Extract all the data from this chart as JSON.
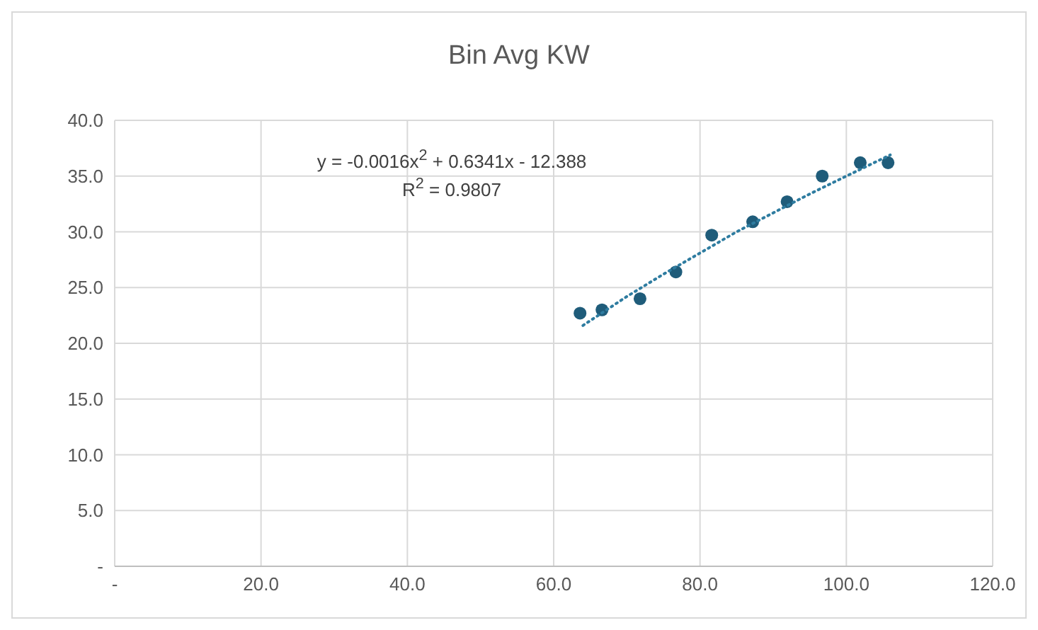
{
  "chart_data": {
    "type": "scatter",
    "title": "Bin Avg KW",
    "series": [
      {
        "color": "#1f5c7a",
        "marker": "circle",
        "x": [
          63.6,
          66.6,
          71.8,
          76.7,
          81.6,
          87.2,
          91.9,
          96.7,
          101.9,
          105.7
        ],
        "values": [
          22.7,
          23.0,
          24.0,
          26.4,
          29.7,
          30.9,
          32.7,
          35.0,
          36.2,
          36.2
        ]
      },
      {
        "type": "line",
        "color": "#2e7ca0",
        "marker": "none",
        "line_style": "dotted",
        "x": [
          64,
          70,
          75,
          80,
          85,
          90,
          95,
          100,
          106
        ],
        "values": [
          21.6,
          24.2,
          26.2,
          28.1,
          30.0,
          31.7,
          33.4,
          35.0,
          36.9
        ]
      }
    ],
    "annotations": [
      "y = -0.0016x$^{2}$ + 0.6341x  - 12.388",
      "R$^{2}$ = 0.9807"
    ],
    "xlim": [
      0,
      120
    ],
    "xticks": [
      {
        "value": 0,
        "label": "-"
      },
      {
        "value": 20,
        "label": "20.0"
      },
      {
        "value": 40,
        "label": "40.0"
      },
      {
        "value": 60,
        "label": "60.0"
      },
      {
        "value": 80,
        "label": "80.0"
      },
      {
        "value": 100,
        "label": "100.0"
      },
      {
        "value": 120,
        "label": "120.0"
      }
    ],
    "ylim": [
      0,
      40
    ],
    "yticks": [
      {
        "value": 0,
        "label": "-"
      },
      {
        "value": 5,
        "label": "5.0"
      },
      {
        "value": 10,
        "label": "10.0"
      },
      {
        "value": 15,
        "label": "15.0"
      },
      {
        "value": 20,
        "label": "20.0"
      },
      {
        "value": 25,
        "label": "25.0"
      },
      {
        "value": 30,
        "label": "30.0"
      },
      {
        "value": 35,
        "label": "35.0"
      },
      {
        "value": 40,
        "label": "40.0"
      }
    ],
    "grid": true
  }
}
